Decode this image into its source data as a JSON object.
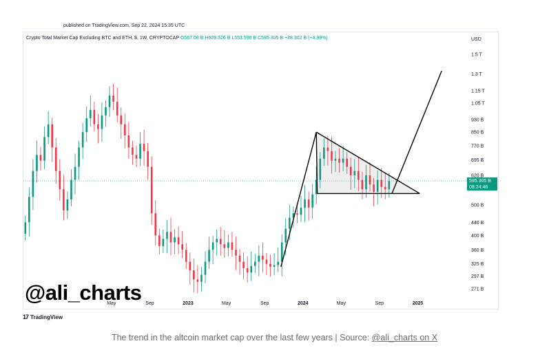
{
  "header": {
    "published": "published on TradingView.com, Sep 22, 2024 15:35 UTC"
  },
  "legend": {
    "symbol": "Crypto Total Market Cap Excluding BTC and ETH, $, 1W, CRYPTOCAP",
    "open": "O567.08 B",
    "high": "H609.526 B",
    "low": "L553.598 B",
    "close": "C595.305 B",
    "change": "+28.302 B (+4.99%)"
  },
  "watermark": "@ali_charts",
  "footer": {
    "tv_logo": "TradingView",
    "tv_mark": "17"
  },
  "caption": {
    "text": "The trend in the altcoin market cap over the last few years | Source: ",
    "link": "@ali_charts on X"
  },
  "chart_data": {
    "type": "candlestick",
    "title": "Crypto Total Market Cap Excluding BTC and ETH, $, 1W, CRYPTOCAP",
    "y_unit": "USD",
    "y_scale": "log",
    "ylim": [
      255,
      1650
    ],
    "y_ticks": [
      {
        "label": "1.5 T",
        "value": 1500
      },
      {
        "label": "1.3 T",
        "value": 1300
      },
      {
        "label": "1.15 T",
        "value": 1150
      },
      {
        "label": "1.05 T",
        "value": 1050
      },
      {
        "label": "930 B",
        "value": 930
      },
      {
        "label": "850 B",
        "value": 850
      },
      {
        "label": "770 B",
        "value": 770
      },
      {
        "label": "695 B",
        "value": 695
      },
      {
        "label": "620 B",
        "value": 620
      },
      {
        "label": "500 B",
        "value": 500
      },
      {
        "label": "440 B",
        "value": 440
      },
      {
        "label": "400 B",
        "value": 400
      },
      {
        "label": "360 B",
        "value": 360
      },
      {
        "label": "325 B",
        "value": 325
      },
      {
        "label": "297 B",
        "value": 297
      },
      {
        "label": "271 B",
        "value": 271
      }
    ],
    "x_ticks": [
      {
        "label": "May",
        "month": 4,
        "bold": false
      },
      {
        "label": "Sep",
        "month": 8,
        "bold": false
      },
      {
        "label": "2023",
        "month": 12,
        "bold": true
      },
      {
        "label": "May",
        "month": 16,
        "bold": false
      },
      {
        "label": "Sep",
        "month": 20,
        "bold": false
      },
      {
        "label": "2024",
        "month": 24,
        "bold": true
      },
      {
        "label": "May",
        "month": 28,
        "bold": false
      },
      {
        "label": "Sep",
        "month": 32,
        "bold": false
      },
      {
        "label": "2025",
        "month": 36,
        "bold": true
      }
    ],
    "xlim_months": [
      -5.2,
      41
    ],
    "last_price": {
      "label": "595.305 B",
      "countdown": "08:24:46",
      "value": 595.305
    },
    "closes": [
      {
        "m": -5.0,
        "v": 440
      },
      {
        "m": -4.6,
        "v": 530
      },
      {
        "m": -4.2,
        "v": 640
      },
      {
        "m": -3.8,
        "v": 720
      },
      {
        "m": -3.4,
        "v": 690
      },
      {
        "m": -3.0,
        "v": 820
      },
      {
        "m": -2.6,
        "v": 900
      },
      {
        "m": -2.2,
        "v": 760
      },
      {
        "m": -1.8,
        "v": 640
      },
      {
        "m": -1.4,
        "v": 560
      },
      {
        "m": -1.0,
        "v": 480
      },
      {
        "m": -0.6,
        "v": 520
      },
      {
        "m": -0.2,
        "v": 600
      },
      {
        "m": 0.2,
        "v": 660
      },
      {
        "m": 0.6,
        "v": 760
      },
      {
        "m": 1.0,
        "v": 850
      },
      {
        "m": 1.4,
        "v": 940
      },
      {
        "m": 1.8,
        "v": 1000
      },
      {
        "m": 2.2,
        "v": 900
      },
      {
        "m": 2.6,
        "v": 870
      },
      {
        "m": 3.0,
        "v": 960
      },
      {
        "m": 3.4,
        "v": 1020
      },
      {
        "m": 3.8,
        "v": 1110
      },
      {
        "m": 4.2,
        "v": 1060
      },
      {
        "m": 4.6,
        "v": 960
      },
      {
        "m": 5.0,
        "v": 900
      },
      {
        "m": 5.4,
        "v": 830
      },
      {
        "m": 5.8,
        "v": 760
      },
      {
        "m": 6.2,
        "v": 720
      },
      {
        "m": 6.6,
        "v": 700
      },
      {
        "m": 7.0,
        "v": 780
      },
      {
        "m": 7.4,
        "v": 740
      },
      {
        "m": 7.8,
        "v": 660
      },
      {
        "m": 8.2,
        "v": 470
      },
      {
        "m": 8.6,
        "v": 400
      },
      {
        "m": 9.0,
        "v": 370
      },
      {
        "m": 9.4,
        "v": 390
      },
      {
        "m": 9.8,
        "v": 410
      },
      {
        "m": 10.2,
        "v": 380
      },
      {
        "m": 10.6,
        "v": 395
      },
      {
        "m": 11.0,
        "v": 375
      },
      {
        "m": 11.4,
        "v": 360
      },
      {
        "m": 11.8,
        "v": 330
      },
      {
        "m": 12.2,
        "v": 310
      },
      {
        "m": 12.6,
        "v": 290
      },
      {
        "m": 13.0,
        "v": 285
      },
      {
        "m": 13.4,
        "v": 300
      },
      {
        "m": 13.8,
        "v": 330
      },
      {
        "m": 14.2,
        "v": 360
      },
      {
        "m": 14.6,
        "v": 380
      },
      {
        "m": 15.0,
        "v": 390
      },
      {
        "m": 15.4,
        "v": 375
      },
      {
        "m": 15.8,
        "v": 365
      },
      {
        "m": 16.2,
        "v": 380
      },
      {
        "m": 16.6,
        "v": 360
      },
      {
        "m": 17.0,
        "v": 345
      },
      {
        "m": 17.4,
        "v": 330
      },
      {
        "m": 17.8,
        "v": 315
      },
      {
        "m": 18.2,
        "v": 305
      },
      {
        "m": 18.6,
        "v": 320
      },
      {
        "m": 19.0,
        "v": 330
      },
      {
        "m": 19.4,
        "v": 345
      },
      {
        "m": 19.8,
        "v": 335
      },
      {
        "m": 20.2,
        "v": 325
      },
      {
        "m": 20.6,
        "v": 318
      },
      {
        "m": 21.0,
        "v": 322
      },
      {
        "m": 21.4,
        "v": 330
      },
      {
        "m": 21.8,
        "v": 380
      },
      {
        "m": 22.2,
        "v": 420
      },
      {
        "m": 22.6,
        "v": 455
      },
      {
        "m": 23.0,
        "v": 470
      },
      {
        "m": 23.4,
        "v": 465
      },
      {
        "m": 23.8,
        "v": 490
      },
      {
        "m": 24.2,
        "v": 520
      },
      {
        "m": 24.6,
        "v": 490
      },
      {
        "m": 25.0,
        "v": 540
      },
      {
        "m": 25.4,
        "v": 600
      },
      {
        "m": 25.8,
        "v": 700
      },
      {
        "m": 26.2,
        "v": 760
      },
      {
        "m": 26.6,
        "v": 740
      },
      {
        "m": 27.0,
        "v": 690
      },
      {
        "m": 27.4,
        "v": 700
      },
      {
        "m": 27.8,
        "v": 680
      },
      {
        "m": 28.2,
        "v": 700
      },
      {
        "m": 28.6,
        "v": 660
      },
      {
        "m": 29.0,
        "v": 620
      },
      {
        "m": 29.4,
        "v": 640
      },
      {
        "m": 29.8,
        "v": 600
      },
      {
        "m": 30.2,
        "v": 560
      },
      {
        "m": 30.6,
        "v": 620
      },
      {
        "m": 31.0,
        "v": 580
      },
      {
        "m": 31.4,
        "v": 550
      },
      {
        "m": 31.8,
        "v": 600
      },
      {
        "m": 32.2,
        "v": 570
      },
      {
        "m": 32.6,
        "v": 560
      },
      {
        "m": 33.0,
        "v": 595
      }
    ],
    "pattern_lines": [
      {
        "name": "flagpole-up",
        "from": {
          "m": 21.7,
          "v": 318
        },
        "to": {
          "m": 25.4,
          "v": 850
        }
      },
      {
        "name": "flagpole-down",
        "from": {
          "m": 25.4,
          "v": 850
        },
        "to": {
          "m": 25.5,
          "v": 543
        }
      },
      {
        "name": "pennant-upper",
        "from": {
          "m": 25.4,
          "v": 850
        },
        "to": {
          "m": 36.2,
          "v": 543
        }
      },
      {
        "name": "pennant-lower",
        "from": {
          "m": 25.5,
          "v": 543
        },
        "to": {
          "m": 36.2,
          "v": 543
        }
      },
      {
        "name": "projection",
        "from": {
          "m": 33.3,
          "v": 543
        },
        "to": {
          "m": 38.5,
          "v": 1330
        }
      }
    ]
  }
}
